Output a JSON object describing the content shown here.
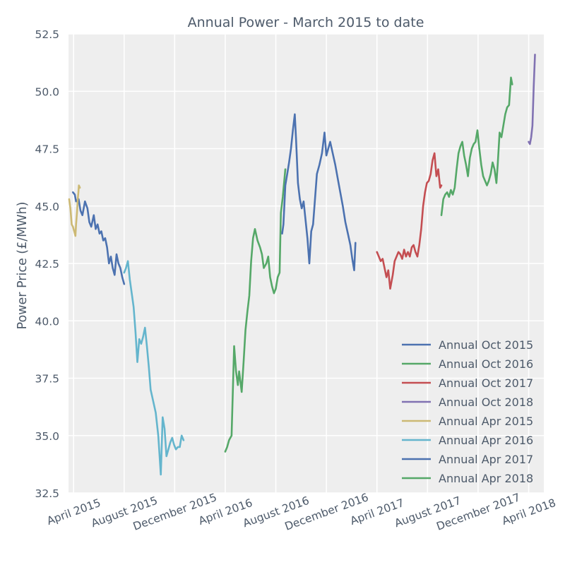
{
  "chart_data": {
    "type": "line",
    "title": "Annual Power - March 2015 to date",
    "xlabel": "",
    "ylabel": "Power Price (£/MWh)",
    "ylim": [
      32.5,
      52.5
    ],
    "yticks": [
      "32.5",
      "35.0",
      "37.5",
      "40.0",
      "42.5",
      "45.0",
      "47.5",
      "50.0",
      "52.5"
    ],
    "x_unit": "months since January 2015",
    "xlim": [
      2.6,
      40.2
    ],
    "xticks": [
      {
        "label": "April 2015",
        "x": 3
      },
      {
        "label": "August 2015",
        "x": 7
      },
      {
        "label": "December 2015",
        "x": 11
      },
      {
        "label": "April 2016",
        "x": 15
      },
      {
        "label": "August 2016",
        "x": 19
      },
      {
        "label": "December 2016",
        "x": 23
      },
      {
        "label": "April 2017",
        "x": 27
      },
      {
        "label": "August 2017",
        "x": 31
      },
      {
        "label": "December 2017",
        "x": 35
      },
      {
        "label": "April 2018",
        "x": 39
      }
    ],
    "grid": true,
    "legend_position": "bottom-right",
    "series": [
      {
        "name": "Annual Oct 2015",
        "color": "#4c72b0",
        "points": [
          [
            2.95,
            45.6
          ],
          [
            3.1,
            45.5
          ],
          [
            3.2,
            45.2
          ],
          [
            3.4,
            45.3
          ],
          [
            3.55,
            44.8
          ],
          [
            3.7,
            44.6
          ],
          [
            3.9,
            45.2
          ],
          [
            4.1,
            44.9
          ],
          [
            4.25,
            44.3
          ],
          [
            4.4,
            44.1
          ],
          [
            4.6,
            44.6
          ],
          [
            4.75,
            44.0
          ],
          [
            4.9,
            44.2
          ],
          [
            5.05,
            43.8
          ],
          [
            5.2,
            43.9
          ],
          [
            5.35,
            43.5
          ],
          [
            5.5,
            43.6
          ],
          [
            5.65,
            43.2
          ],
          [
            5.8,
            42.5
          ],
          [
            5.95,
            42.8
          ],
          [
            6.1,
            42.3
          ],
          [
            6.25,
            42.0
          ],
          [
            6.4,
            42.9
          ],
          [
            6.55,
            42.5
          ],
          [
            6.7,
            42.3
          ],
          [
            6.85,
            41.9
          ],
          [
            7.0,
            41.6
          ]
        ]
      },
      {
        "name": "Annual Oct 2016",
        "color": "#55a868",
        "points": [
          [
            15.0,
            34.3
          ],
          [
            15.15,
            34.5
          ],
          [
            15.3,
            34.8
          ],
          [
            15.5,
            35.0
          ],
          [
            15.7,
            38.9
          ],
          [
            15.85,
            37.8
          ],
          [
            16.0,
            37.2
          ],
          [
            16.1,
            37.8
          ],
          [
            16.3,
            36.9
          ],
          [
            16.45,
            38.2
          ],
          [
            16.6,
            39.6
          ],
          [
            16.75,
            40.4
          ],
          [
            16.9,
            41.1
          ],
          [
            17.05,
            42.6
          ],
          [
            17.2,
            43.6
          ],
          [
            17.35,
            44.0
          ],
          [
            17.55,
            43.5
          ],
          [
            17.75,
            43.2
          ],
          [
            17.9,
            42.9
          ],
          [
            18.05,
            42.3
          ],
          [
            18.25,
            42.5
          ],
          [
            18.4,
            42.8
          ],
          [
            18.55,
            41.9
          ],
          [
            18.7,
            41.5
          ],
          [
            18.85,
            41.2
          ],
          [
            19.0,
            41.4
          ],
          [
            19.15,
            41.9
          ],
          [
            19.3,
            42.1
          ],
          [
            19.4,
            44.7
          ],
          [
            19.55,
            45.4
          ],
          [
            19.75,
            46.6
          ]
        ]
      },
      {
        "name": "Annual Oct 2017",
        "color": "#c44e52",
        "points": [
          [
            27.0,
            43.0
          ],
          [
            27.15,
            42.8
          ],
          [
            27.3,
            42.6
          ],
          [
            27.45,
            42.7
          ],
          [
            27.6,
            42.3
          ],
          [
            27.75,
            41.9
          ],
          [
            27.9,
            42.2
          ],
          [
            28.05,
            41.4
          ],
          [
            28.25,
            42.0
          ],
          [
            28.4,
            42.6
          ],
          [
            28.55,
            42.8
          ],
          [
            28.7,
            43.0
          ],
          [
            28.85,
            42.9
          ],
          [
            29.0,
            42.7
          ],
          [
            29.15,
            43.1
          ],
          [
            29.3,
            42.8
          ],
          [
            29.45,
            43.0
          ],
          [
            29.6,
            42.8
          ],
          [
            29.75,
            43.2
          ],
          [
            29.9,
            43.3
          ],
          [
            30.05,
            43.0
          ],
          [
            30.2,
            42.8
          ],
          [
            30.35,
            43.3
          ],
          [
            30.5,
            44.0
          ],
          [
            30.65,
            45.0
          ],
          [
            30.8,
            45.6
          ],
          [
            30.95,
            46.0
          ],
          [
            31.1,
            46.1
          ],
          [
            31.25,
            46.4
          ],
          [
            31.4,
            47.0
          ],
          [
            31.55,
            47.3
          ],
          [
            31.7,
            46.3
          ],
          [
            31.85,
            46.6
          ],
          [
            32.0,
            45.8
          ],
          [
            32.1,
            45.9
          ]
        ]
      },
      {
        "name": "Annual Oct 2018",
        "color": "#8172b2",
        "points": [
          [
            39.0,
            47.8
          ],
          [
            39.1,
            47.7
          ],
          [
            39.2,
            48.0
          ],
          [
            39.3,
            48.5
          ],
          [
            39.4,
            50.2
          ],
          [
            39.5,
            51.6
          ]
        ]
      },
      {
        "name": "Annual Apr 2015",
        "color": "#ccb974",
        "points": [
          [
            2.65,
            45.3
          ],
          [
            2.75,
            44.9
          ],
          [
            2.85,
            44.2
          ],
          [
            2.95,
            44.1
          ],
          [
            3.05,
            43.9
          ],
          [
            3.15,
            43.7
          ],
          [
            3.2,
            44.2
          ],
          [
            3.28,
            44.8
          ],
          [
            3.33,
            45.3
          ],
          [
            3.38,
            45.6
          ],
          [
            3.42,
            45.9
          ],
          [
            3.5,
            45.8
          ]
        ]
      },
      {
        "name": "Annual Apr 2016",
        "color": "#64b5cd",
        "points": [
          [
            7.0,
            42.1
          ],
          [
            7.15,
            42.3
          ],
          [
            7.3,
            42.6
          ],
          [
            7.45,
            41.8
          ],
          [
            7.6,
            41.2
          ],
          [
            7.75,
            40.6
          ],
          [
            7.9,
            39.5
          ],
          [
            8.05,
            38.2
          ],
          [
            8.2,
            39.2
          ],
          [
            8.35,
            39.0
          ],
          [
            8.5,
            39.3
          ],
          [
            8.65,
            39.7
          ],
          [
            8.8,
            38.9
          ],
          [
            8.95,
            38.0
          ],
          [
            9.1,
            37.0
          ],
          [
            9.3,
            36.5
          ],
          [
            9.5,
            36.0
          ],
          [
            9.7,
            35.0
          ],
          [
            9.9,
            33.3
          ],
          [
            10.05,
            35.8
          ],
          [
            10.2,
            35.3
          ],
          [
            10.35,
            34.1
          ],
          [
            10.5,
            34.4
          ],
          [
            10.65,
            34.7
          ],
          [
            10.8,
            34.9
          ],
          [
            10.95,
            34.6
          ],
          [
            11.1,
            34.4
          ],
          [
            11.25,
            34.5
          ],
          [
            11.4,
            34.5
          ],
          [
            11.55,
            35.0
          ],
          [
            11.7,
            34.8
          ]
        ]
      },
      {
        "name": "Annual Apr 2017",
        "color": "#4c72b0",
        "points": [
          [
            19.5,
            43.8
          ],
          [
            19.6,
            44.2
          ],
          [
            19.75,
            45.9
          ],
          [
            19.9,
            46.4
          ],
          [
            20.05,
            46.9
          ],
          [
            20.2,
            47.5
          ],
          [
            20.35,
            48.3
          ],
          [
            20.5,
            49.0
          ],
          [
            20.6,
            47.9
          ],
          [
            20.75,
            46.0
          ],
          [
            20.9,
            45.3
          ],
          [
            21.05,
            44.9
          ],
          [
            21.2,
            45.2
          ],
          [
            21.35,
            44.4
          ],
          [
            21.5,
            43.6
          ],
          [
            21.65,
            42.5
          ],
          [
            21.8,
            43.9
          ],
          [
            21.95,
            44.2
          ],
          [
            22.1,
            45.3
          ],
          [
            22.25,
            46.4
          ],
          [
            22.45,
            46.8
          ],
          [
            22.65,
            47.3
          ],
          [
            22.85,
            48.2
          ],
          [
            23.0,
            47.2
          ],
          [
            23.15,
            47.5
          ],
          [
            23.3,
            47.8
          ],
          [
            23.5,
            47.3
          ],
          [
            23.7,
            46.8
          ],
          [
            23.9,
            46.2
          ],
          [
            24.1,
            45.6
          ],
          [
            24.3,
            45.0
          ],
          [
            24.5,
            44.3
          ],
          [
            24.7,
            43.8
          ],
          [
            24.9,
            43.3
          ],
          [
            25.05,
            42.7
          ],
          [
            25.2,
            42.2
          ],
          [
            25.3,
            43.4
          ]
        ]
      },
      {
        "name": "Annual Apr 2018",
        "color": "#55a868",
        "points": [
          [
            32.1,
            44.6
          ],
          [
            32.25,
            45.3
          ],
          [
            32.4,
            45.5
          ],
          [
            32.55,
            45.6
          ],
          [
            32.7,
            45.4
          ],
          [
            32.85,
            45.7
          ],
          [
            33.0,
            45.5
          ],
          [
            33.15,
            45.8
          ],
          [
            33.3,
            46.6
          ],
          [
            33.45,
            47.3
          ],
          [
            33.6,
            47.6
          ],
          [
            33.75,
            47.8
          ],
          [
            33.9,
            47.2
          ],
          [
            34.05,
            46.8
          ],
          [
            34.2,
            46.3
          ],
          [
            34.35,
            47.1
          ],
          [
            34.5,
            47.5
          ],
          [
            34.65,
            47.7
          ],
          [
            34.8,
            47.8
          ],
          [
            34.95,
            48.3
          ],
          [
            35.1,
            47.5
          ],
          [
            35.25,
            46.8
          ],
          [
            35.4,
            46.3
          ],
          [
            35.55,
            46.1
          ],
          [
            35.7,
            45.9
          ],
          [
            35.85,
            46.1
          ],
          [
            36.0,
            46.4
          ],
          [
            36.15,
            46.9
          ],
          [
            36.3,
            46.6
          ],
          [
            36.45,
            46.0
          ],
          [
            36.55,
            46.8
          ],
          [
            36.7,
            48.2
          ],
          [
            36.85,
            48.0
          ],
          [
            37.0,
            48.5
          ],
          [
            37.15,
            49.0
          ],
          [
            37.3,
            49.3
          ],
          [
            37.45,
            49.4
          ],
          [
            37.6,
            50.6
          ],
          [
            37.7,
            50.3
          ]
        ]
      }
    ]
  }
}
